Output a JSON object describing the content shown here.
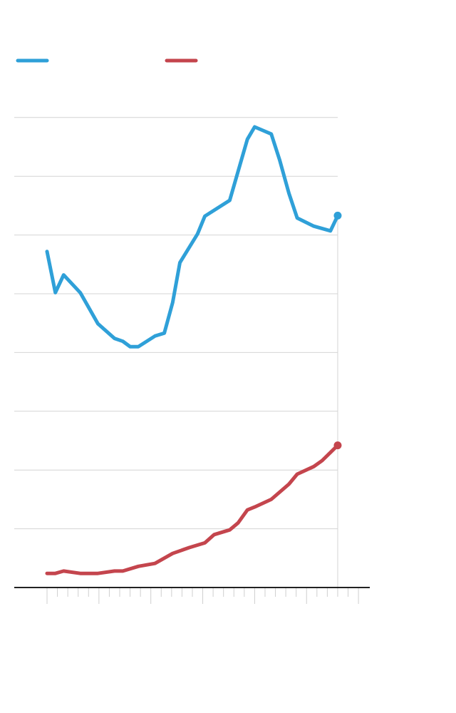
{
  "chart_data": {
    "type": "line",
    "title": "",
    "xlabel": "",
    "ylabel": "",
    "xlim": [
      0,
      30
    ],
    "ylim": [
      0,
      8
    ],
    "grid": true,
    "legend_placement": "top-left",
    "x_ticks_minor_step": 1,
    "x_ticks_major_step": 5,
    "y_grid_step": 1,
    "series": [
      {
        "color": "#2fa0d8",
        "x": [
          0,
          0.8,
          1.6,
          3.2,
          4.9,
          6.5,
          7.3,
          8.0,
          8.8,
          10.4,
          11.3,
          12.1,
          12.8,
          14.5,
          15.2,
          17.6,
          18.4,
          19.3,
          20.0,
          21.6,
          22.4,
          23.3,
          24.1,
          25.7,
          27.3,
          28.0
        ],
        "y": [
          5.72,
          5.02,
          5.32,
          5.02,
          4.49,
          4.24,
          4.19,
          4.1,
          4.1,
          4.28,
          4.33,
          4.85,
          5.53,
          6.02,
          6.32,
          6.59,
          7.08,
          7.63,
          7.84,
          7.72,
          7.28,
          6.71,
          6.29,
          6.15,
          6.07,
          6.33
        ]
      },
      {
        "color": "#c4454d",
        "x": [
          0,
          0.8,
          1.6,
          3.2,
          4.9,
          6.5,
          7.3,
          8.8,
          10.4,
          12.1,
          13.7,
          15.2,
          16.1,
          17.6,
          18.4,
          19.3,
          20.0,
          21.6,
          23.3,
          24.1,
          25.7,
          26.5,
          28.0
        ],
        "y": [
          0.24,
          0.24,
          0.28,
          0.24,
          0.24,
          0.28,
          0.28,
          0.36,
          0.41,
          0.58,
          0.68,
          0.76,
          0.9,
          0.98,
          1.1,
          1.32,
          1.37,
          1.5,
          1.76,
          1.93,
          2.06,
          2.16,
          2.42
        ]
      }
    ]
  }
}
